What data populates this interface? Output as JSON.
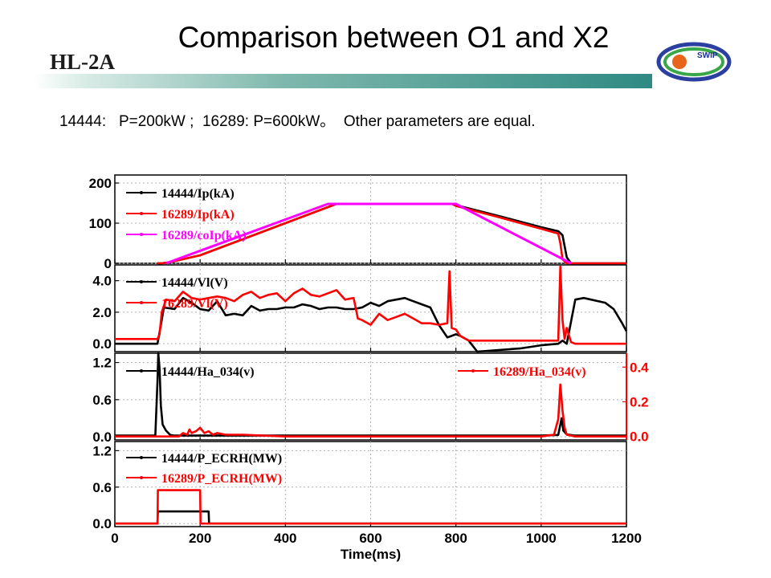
{
  "header": {
    "brand": "HL-2A",
    "title": "Comparison between O1 and X2",
    "subtitle": "14444:   P=200kW ;  16289: P=600kW。  Other parameters are equal.",
    "logo_text": "SWIP"
  },
  "colors": {
    "black_series": "#000000",
    "red_series": "#ff0000",
    "magenta_series": "#ff00ff",
    "grid": "#b0b0b0"
  },
  "chart_data": {
    "type": "line",
    "xlabel": "Time(ms)",
    "xlim": [
      0,
      1200
    ],
    "xticks": [
      0,
      200,
      400,
      600,
      800,
      1000,
      1200
    ],
    "panels": [
      {
        "ylim": [
          0,
          220
        ],
        "yticks": [
          0,
          100,
          200
        ],
        "ytick_labels": [
          "0",
          "100",
          "200"
        ],
        "series": [
          {
            "name": "14444/Ip(kA)",
            "color": "#000000",
            "x": [
              100,
              110,
              130,
              200,
              300,
              400,
              500,
              520,
              600,
              700,
              790,
              800,
              900,
              1000,
              1040,
              1050,
              1060,
              1070,
              1080,
              1200
            ],
            "y": [
              0,
              0,
              3,
              20,
              60,
              100,
              140,
              148,
              148,
              148,
              148,
              145,
              118,
              90,
              80,
              70,
              15,
              0,
              0,
              0
            ]
          },
          {
            "name": "16289/Ip(kA)",
            "color": "#ff0000",
            "x": [
              100,
              110,
              130,
              200,
              300,
              400,
              500,
              520,
              600,
              700,
              790,
              800,
              900,
              1000,
              1040,
              1045,
              1050,
              1060,
              1200
            ],
            "y": [
              0,
              0,
              3,
              20,
              60,
              100,
              140,
              148,
              148,
              148,
              148,
              143,
              115,
              86,
              74,
              50,
              10,
              0,
              0
            ]
          },
          {
            "name": "16289/coIp(kA)",
            "color": "#ff00ff",
            "x": [
              120,
              500,
              800,
              1070
            ],
            "y": [
              0,
              148,
              148,
              0
            ]
          }
        ]
      },
      {
        "ylim": [
          -0.5,
          5.0
        ],
        "yticks": [
          0.0,
          2.0,
          4.0
        ],
        "ytick_labels": [
          "0.0",
          "2.0",
          "4.0"
        ],
        "series": [
          {
            "name": "14444/Vl(V)",
            "color": "#000000",
            "x": [
              0,
              100,
              110,
              115,
              140,
              160,
              180,
              200,
              220,
              240,
              260,
              280,
              300,
              320,
              340,
              360,
              380,
              400,
              420,
              440,
              460,
              480,
              500,
              520,
              540,
              560,
              580,
              600,
              620,
              640,
              660,
              680,
              700,
              720,
              740,
              760,
              780,
              790,
              800,
              810,
              830,
              850,
              900,
              950,
              1000,
              1040,
              1050,
              1060,
              1080,
              1100,
              1150,
              1170,
              1190,
              1200
            ],
            "y": [
              0,
              0,
              1.5,
              2.3,
              2.2,
              2.9,
              2.6,
              2.2,
              2.1,
              2.7,
              1.8,
              1.9,
              1.8,
              2.4,
              2.1,
              2.2,
              2.2,
              2.3,
              2.3,
              2.5,
              2.4,
              2.2,
              2.3,
              2.3,
              2.2,
              2.2,
              2.3,
              2.6,
              2.4,
              2.7,
              2.8,
              2.9,
              2.7,
              2.5,
              2.3,
              1.2,
              0.4,
              0.5,
              0.6,
              0.5,
              0.2,
              -0.5,
              -0.4,
              -0.3,
              -0.1,
              0.0,
              0.2,
              0.0,
              2.8,
              2.9,
              2.6,
              2.2,
              1.3,
              0.8
            ]
          },
          {
            "name": "16289/Vl(V)",
            "color": "#ff0000",
            "x": [
              0,
              100,
              105,
              110,
              120,
              140,
              160,
              180,
              200,
              220,
              240,
              260,
              280,
              300,
              320,
              340,
              360,
              380,
              400,
              420,
              440,
              460,
              480,
              500,
              520,
              540,
              560,
              570,
              580,
              600,
              620,
              640,
              660,
              680,
              700,
              720,
              740,
              760,
              780,
              785,
              790,
              800,
              810,
              830,
              900,
              1000,
              1040,
              1045,
              1050,
              1055,
              1060,
              1070,
              1080,
              1090,
              1100,
              1200
            ],
            "y": [
              0.3,
              0.3,
              0.6,
              2.0,
              2.8,
              2.7,
              3.3,
              2.9,
              2.8,
              2.9,
              3.0,
              2.9,
              2.7,
              3.1,
              3.3,
              2.9,
              3.1,
              3.2,
              2.7,
              3.2,
              3.5,
              3.1,
              3.0,
              3.2,
              3.4,
              2.8,
              2.9,
              1.6,
              1.5,
              1.2,
              1.9,
              1.5,
              1.7,
              1.9,
              1.6,
              1.3,
              1.3,
              1.2,
              1.3,
              4.6,
              1.0,
              0.9,
              0.5,
              0.2,
              0.2,
              0.2,
              0.2,
              4.9,
              1.5,
              0.3,
              1.0,
              0.1,
              0.0,
              0.0,
              0.0,
              0.0
            ]
          }
        ]
      },
      {
        "ylim": [
          -0.05,
          1.35
        ],
        "yticks": [
          0.0,
          0.6,
          1.2
        ],
        "ytick_labels": [
          "0.0",
          "0.6",
          "1.2"
        ],
        "y2lim": [
          -0.02,
          0.48
        ],
        "y2ticks": [
          0.0,
          0.2,
          0.4
        ],
        "y2tick_labels": [
          "0.0",
          "0.2",
          "0.4"
        ],
        "series": [
          {
            "name": "14444/Ha_034(v)",
            "color": "#000000",
            "axis": "left",
            "x": [
              0,
              95,
              100,
              102,
              105,
              108,
              112,
              120,
              130,
              140,
              200,
              300,
              400,
              1000,
              1040,
              1048,
              1052,
              1060,
              1080,
              1200
            ],
            "y": [
              0.02,
              0.02,
              0.9,
              1.35,
              1.1,
              0.5,
              0.2,
              0.1,
              0.03,
              0.02,
              0.02,
              0.02,
              0.02,
              0.02,
              0.03,
              0.3,
              0.1,
              0.04,
              0.02,
              0.02
            ]
          },
          {
            "name": "16289/Ha_034(v)",
            "color": "#ff0000",
            "axis": "right",
            "x": [
              0,
              150,
              160,
              170,
              175,
              180,
              190,
              200,
              210,
              220,
              230,
              240,
              260,
              300,
              400,
              1000,
              1030,
              1040,
              1045,
              1050,
              1055,
              1060,
              1080,
              1200
            ],
            "y": [
              0.0,
              0.0,
              0.02,
              0.01,
              0.04,
              0.02,
              0.03,
              0.05,
              0.02,
              0.03,
              0.01,
              0.02,
              0.01,
              0.01,
              0.0,
              0.0,
              0.01,
              0.1,
              0.3,
              0.15,
              0.05,
              0.01,
              0.0,
              0.0
            ]
          }
        ]
      },
      {
        "ylim": [
          -0.05,
          1.35
        ],
        "yticks": [
          0.0,
          0.6,
          1.2
        ],
        "ytick_labels": [
          "0.0",
          "0.6",
          "1.2"
        ],
        "series": [
          {
            "name": "14444/P_ECRH(MW)",
            "color": "#000000",
            "x": [
              0,
              100,
              101,
              220,
              221,
              1200
            ],
            "y": [
              0,
              0,
              0.2,
              0.2,
              0,
              0
            ]
          },
          {
            "name": "16289/P_ECRH(MW)",
            "color": "#ff0000",
            "x": [
              0,
              100,
              101,
              200,
              201,
              1200
            ],
            "y": [
              0,
              0,
              0.55,
              0.55,
              0,
              0
            ]
          }
        ]
      }
    ]
  }
}
